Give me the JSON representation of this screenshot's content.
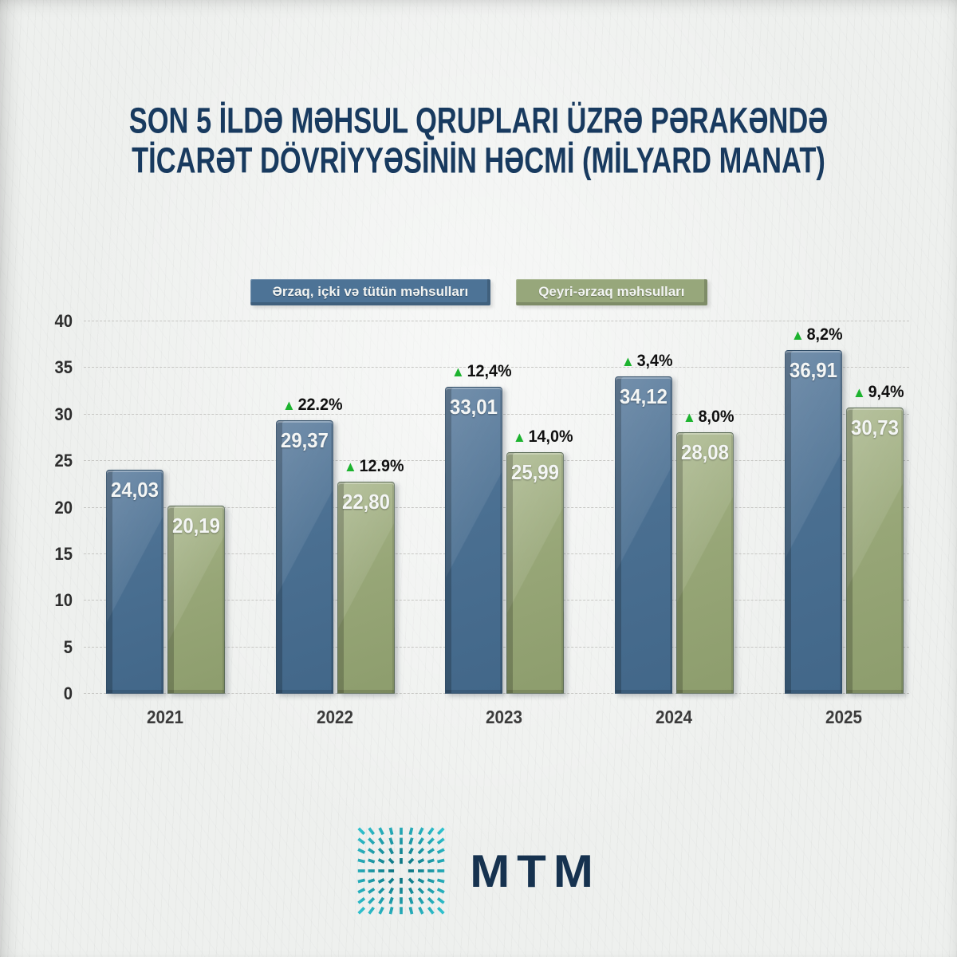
{
  "title": {
    "line1": "SON 5 İLDƏ MƏHSUL QRUPLARI ÜZRƏ PƏRAKƏNDƏ",
    "line2": "TİCARƏT DÖVRİYYƏSİNİN HƏCMİ (MİLYARD MANAT)"
  },
  "legend": [
    {
      "label": "Ərzaq, içki və tütün məhsulları",
      "color": "#4d7396"
    },
    {
      "label": "Qeyri-ərzaq məhsulları",
      "color": "#97a77b"
    }
  ],
  "chart_data": {
    "type": "bar",
    "title": "SON 5 İLDƏ MƏHSUL QRUPLARI ÜZRƏ PƏRAKƏNDƏ TİCARƏT DÖVRİYYƏSİNİN HƏCMİ (MİLYARD MANAT)",
    "categories": [
      "2021",
      "2022",
      "2023",
      "2024",
      "2025"
    ],
    "series": [
      {
        "name": "Ərzaq, içki və tütün məhsulları",
        "color": "#4a6f91",
        "values": [
          24.03,
          29.37,
          33.01,
          34.12,
          36.91
        ],
        "value_labels": [
          "24,03",
          "29,37",
          "33,01",
          "34,12",
          "36,91"
        ],
        "growth_labels": [
          "",
          "22.2%",
          "12,4%",
          "3,4%",
          "8,2%"
        ]
      },
      {
        "name": "Qeyri-ərzaq məhsulları",
        "color": "#97a677",
        "values": [
          20.19,
          22.8,
          25.99,
          28.08,
          30.73
        ],
        "value_labels": [
          "20,19",
          "22,80",
          "25,99",
          "28,08",
          "30,73"
        ],
        "growth_labels": [
          "",
          "12.9%",
          "14,0%",
          "8,0%",
          "9,4%"
        ]
      }
    ],
    "ylim": [
      0,
      40
    ],
    "yticks": [
      0,
      5,
      10,
      15,
      20,
      25,
      30,
      35,
      40
    ],
    "xlabel": "",
    "ylabel": "",
    "grid": "horizontal-dashed",
    "legend_position": "top-center",
    "growth_marker": "▲"
  },
  "footer": {
    "logo_text": "MTM",
    "logo_icon": "starburst-grid-icon"
  },
  "colors": {
    "title_navy": "#183a5f",
    "bar_blue": "#4a6f91",
    "bar_green": "#97a677",
    "growth_up_green": "#1db32f",
    "axis_text": "#2d2d2d",
    "grid_line": "#c7c7c4",
    "background": "#eef0ee",
    "logo_navy": "#16324f",
    "logo_teal_dark": "#0a6a78",
    "logo_teal_light": "#2fc0cd"
  }
}
